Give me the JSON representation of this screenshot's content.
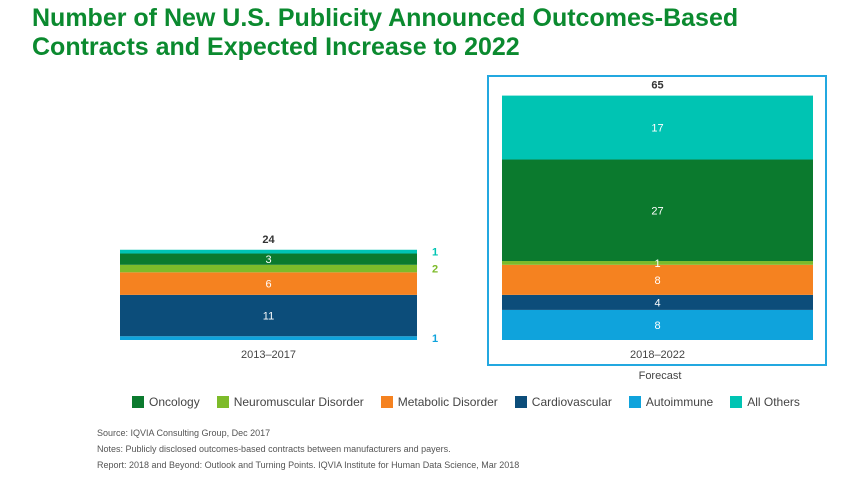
{
  "title": {
    "line1": "Number of New U.S. Publicity Announced Outcomes-Based",
    "line2": "Contracts and Expected Increase to 2022"
  },
  "chart_data": {
    "type": "bar",
    "stacked": true,
    "categories": [
      "2013–2017",
      "2018–2022"
    ],
    "category_sublabels": [
      "",
      "Forecast"
    ],
    "totals": [
      24,
      65
    ],
    "series": [
      {
        "name": "Autoimmune",
        "color": "#0fa3dc",
        "values": [
          1,
          8
        ]
      },
      {
        "name": "Cardiovascular",
        "color": "#0c4d7a",
        "values": [
          11,
          4
        ]
      },
      {
        "name": "Metabolic Disorder",
        "color": "#f58220",
        "values": [
          6,
          8
        ]
      },
      {
        "name": "Neuromuscular Disorder",
        "color": "#7dbb2a",
        "values": [
          2,
          1
        ]
      },
      {
        "name": "Oncology",
        "color": "#0b7a2e",
        "values": [
          3,
          27
        ]
      },
      {
        "name": "All Others",
        "color": "#00c4b3",
        "values": [
          1,
          17
        ]
      }
    ],
    "legend_order": [
      "Oncology",
      "Neuromuscular Disorder",
      "Metabolic Disorder",
      "Cardiovascular",
      "Autoimmune",
      "All Others"
    ],
    "highlight": {
      "category": "2018–2022",
      "border_color": "#23a8e0"
    },
    "legend_position": "bottom",
    "grid": false
  },
  "notes": [
    "Source: IQVIA Consulting Group, Dec 2017",
    "Notes: Publicly disclosed outcomes-based contracts between manufacturers and payers.",
    "Report: 2018 and Beyond: Outlook and Turning Points. IQVIA Institute for Human Data Science, Mar 2018"
  ]
}
